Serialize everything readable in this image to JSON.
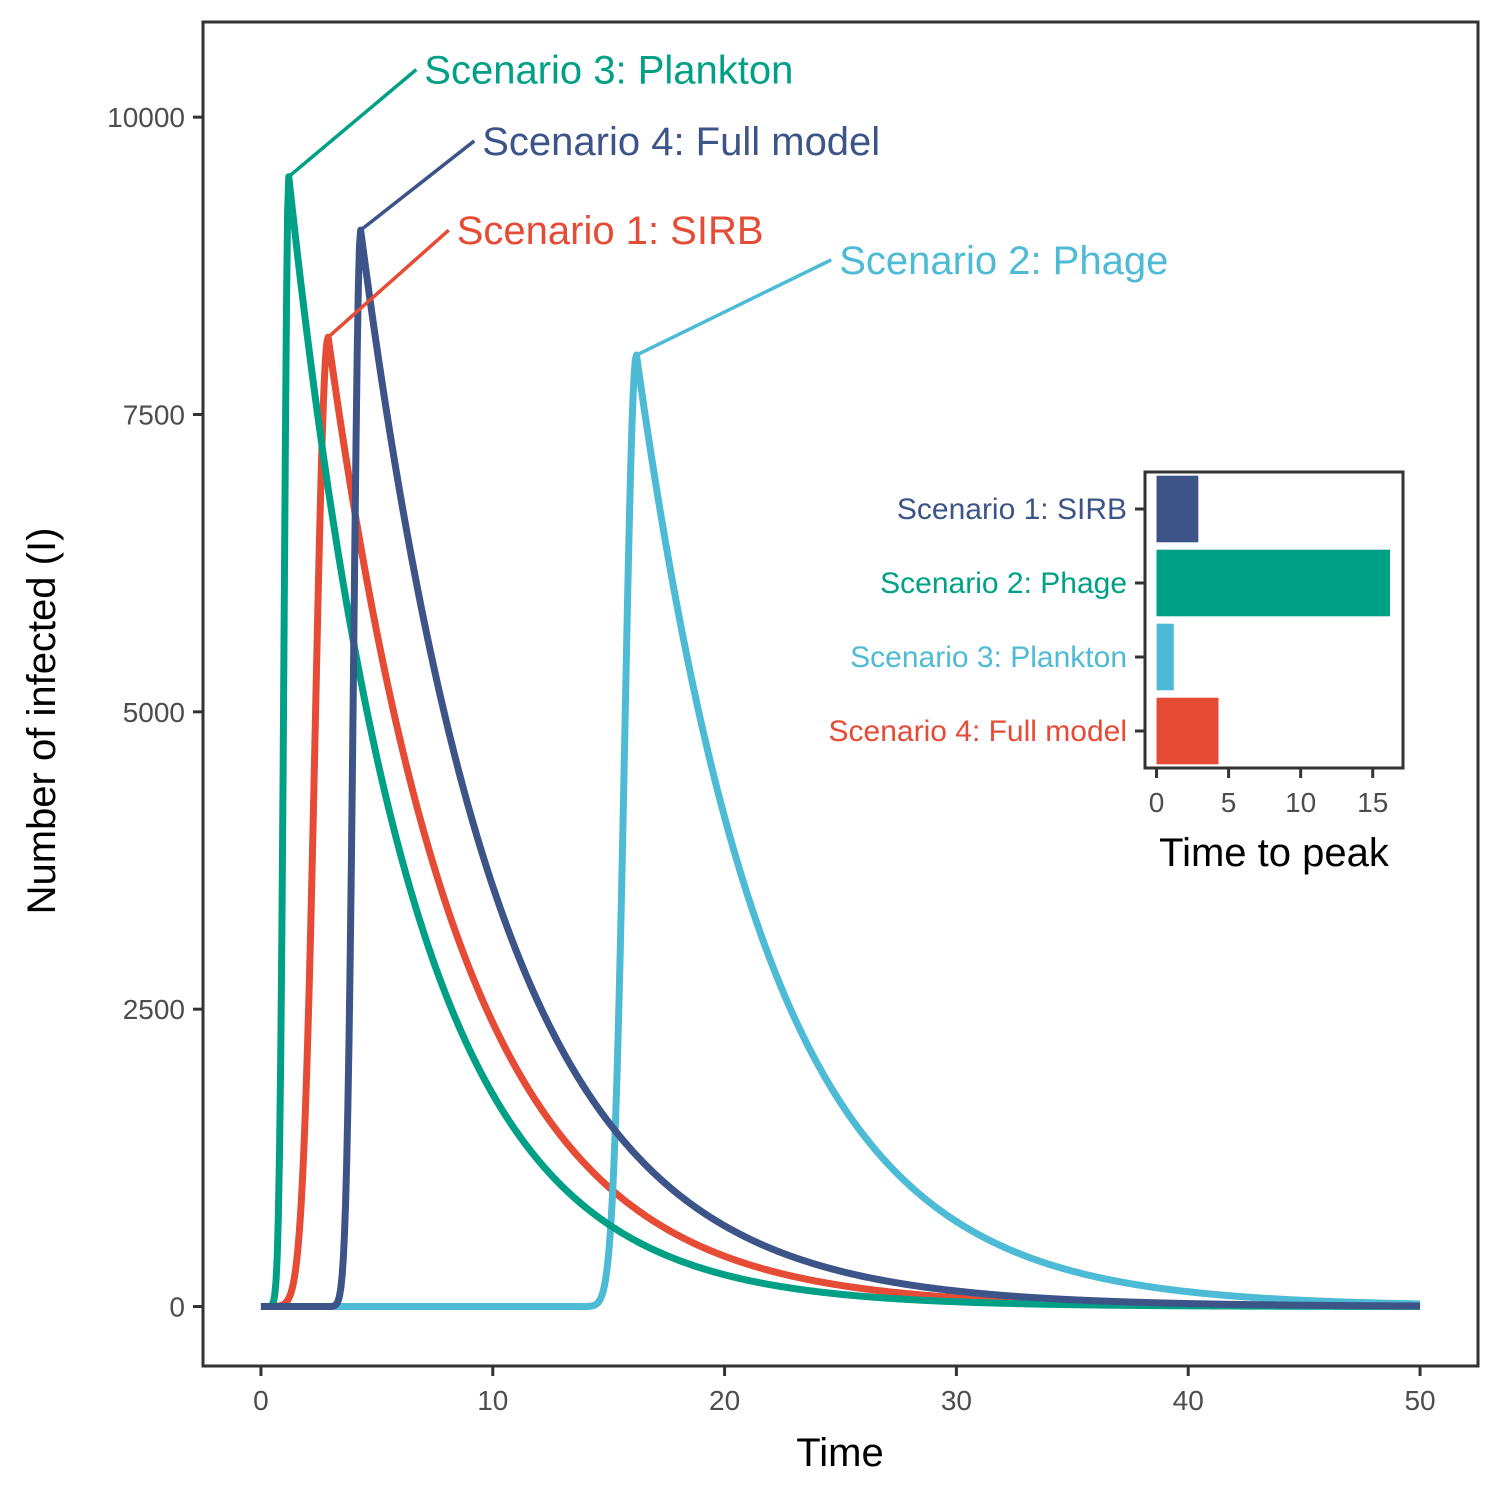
{
  "chart_data": [
    {
      "type": "line",
      "xlabel": "Time",
      "ylabel": "Number of infected (I)",
      "xlim": [
        -2.5,
        52.5
      ],
      "ylim": [
        -500,
        10800
      ],
      "x_ticks": [
        0,
        10,
        20,
        30,
        40,
        50
      ],
      "y_ticks": [
        0,
        2500,
        5000,
        7500,
        10000
      ],
      "x_tick_labels": [
        "0",
        "10",
        "20",
        "30",
        "40",
        "50"
      ],
      "y_tick_labels": [
        "0",
        "2500",
        "5000",
        "7500",
        "10000"
      ],
      "grid": false,
      "legend": "none",
      "series": [
        {
          "name": "Scenario 1: SIRB",
          "color": "#E64B35",
          "peak_time": 2.9,
          "peak_value": 8150,
          "rise_width": 0.55,
          "decay_rate": 0.173,
          "label_point": [
            8.1,
            9050
          ]
        },
        {
          "name": "Scenario 2: Phage",
          "color": "#4DBBD5",
          "peak_time": 16.2,
          "peak_value": 8000,
          "rise_width": 0.5,
          "decay_rate": 0.175,
          "label_point": [
            24.6,
            8800
          ]
        },
        {
          "name": "Scenario 3: Plankton",
          "color": "#00A087",
          "peak_time": 1.2,
          "peak_value": 9500,
          "rise_width": 0.2,
          "decay_rate": 0.19,
          "label_point": [
            6.7,
            10400
          ]
        },
        {
          "name": "Scenario 4: Full model",
          "color": "#3C5488",
          "peak_time": 4.3,
          "peak_value": 9050,
          "rise_width": 0.3,
          "decay_rate": 0.165,
          "label_point": [
            9.2,
            9800
          ]
        }
      ],
      "x_end": 50
    },
    {
      "type": "bar",
      "orientation": "horizontal",
      "xlabel": "Time to peak",
      "categories": [
        "Scenario 1: SIRB",
        "Scenario 2: Phage",
        "Scenario 3: Plankton",
        "Scenario 4: Full model"
      ],
      "values": [
        2.9,
        16.2,
        1.2,
        4.3
      ],
      "colors": [
        "#3C5488",
        "#00A087",
        "#4DBBD5",
        "#E64B35"
      ],
      "xlim": [
        -0.8,
        17.1
      ],
      "x_ticks": [
        0,
        5,
        10,
        15
      ],
      "x_tick_labels": [
        "0",
        "5",
        "10",
        "15"
      ]
    }
  ]
}
